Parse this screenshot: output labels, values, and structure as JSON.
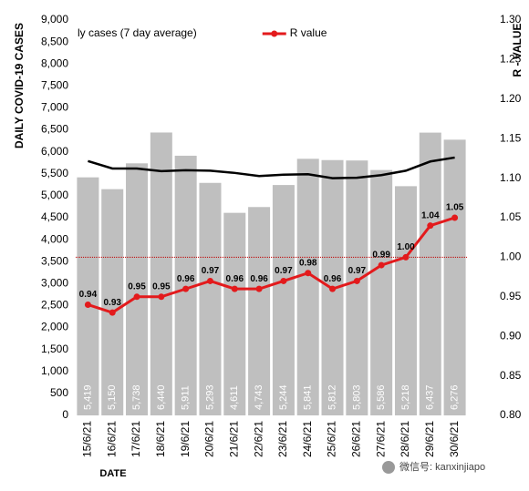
{
  "chart_data": {
    "type": "bar",
    "y_label": "DAILY COVID-19 CASES",
    "y2_label": "R - VALUE",
    "x_label": "DATE",
    "watermark": "微信号: kanxinjiapo",
    "categories": [
      "15/6/21",
      "16/6/21",
      "17/6/21",
      "18/6/21",
      "19/6/21",
      "20/6/21",
      "21/6/21",
      "22/6/21",
      "23/6/21",
      "24/6/21",
      "25/6/21",
      "26/6/21",
      "27/6/21",
      "28/6/21",
      "29/6/21",
      "30/6/21"
    ],
    "series": [
      {
        "type": "bar",
        "color": "#bfbfbf",
        "values": [
          5419,
          5150,
          5738,
          6440,
          5911,
          5293,
          4611,
          4743,
          5244,
          5841,
          5812,
          5803,
          5586,
          5218,
          6437,
          6276
        ],
        "value_labels": [
          "5,419",
          "5,150",
          "5,738",
          "6,440",
          "5,911",
          "5,293",
          "4,611",
          "4,743",
          "5,244",
          "5,841",
          "5,812",
          "5,803",
          "5,586",
          "5,218",
          "6,437",
          "6,276"
        ]
      },
      {
        "type": "line",
        "name": "ly cases (7 day average)",
        "color": "#000000",
        "values": [
          5790,
          5620,
          5620,
          5560,
          5580,
          5570,
          5520,
          5450,
          5480,
          5490,
          5400,
          5410,
          5470,
          5570,
          5780,
          5870
        ]
      },
      {
        "type": "line",
        "name": "R value",
        "axis": "y2",
        "color": "#e31a1c",
        "markers": true,
        "values": [
          0.94,
          0.93,
          0.95,
          0.95,
          0.96,
          0.97,
          0.96,
          0.96,
          0.97,
          0.98,
          0.96,
          0.97,
          0.99,
          1.0,
          1.04,
          1.05
        ],
        "value_labels": [
          "0.94",
          "0.93",
          "0.95",
          "0.95",
          "0.96",
          "0.97",
          "0.96",
          "0.96",
          "0.97",
          "0.98",
          "0.96",
          "0.97",
          "0.99",
          "1.00",
          "1.04",
          "1.05"
        ]
      }
    ],
    "reference_line": {
      "axis": "y2",
      "value": 1.0,
      "color": "#c00000"
    },
    "ylim": [
      0,
      9000
    ],
    "yticks": [
      0,
      500,
      {
        "value": 1000,
        "label": "1,000"
      },
      {
        "value": 1500,
        "label": "1,500"
      },
      {
        "value": 2000,
        "label": "2,000"
      },
      {
        "value": 2500,
        "label": "2,500"
      },
      {
        "value": 3000,
        "label": "3,000"
      },
      {
        "value": 3500,
        "label": "3,500"
      },
      {
        "value": 4000,
        "label": "4,000"
      },
      {
        "value": 4500,
        "label": "4,500"
      },
      {
        "value": 5000,
        "label": "5,000"
      },
      {
        "value": 5500,
        "label": "5,500"
      },
      {
        "value": 6000,
        "label": "6,000"
      },
      {
        "value": 6500,
        "label": "6,500"
      },
      {
        "value": 7000,
        "label": "7,000"
      },
      {
        "value": 7500,
        "label": "7,500"
      },
      {
        "value": 8000,
        "label": "8,000"
      },
      {
        "value": 8500,
        "label": "8,500"
      },
      {
        "value": 9000,
        "label": "9,000"
      }
    ],
    "y2lim": [
      0.8,
      1.3
    ],
    "y2ticks": [
      {
        "value": 0.8,
        "label": "0.80"
      },
      0.85,
      {
        "value": 0.9,
        "label": "0.90"
      },
      0.95,
      {
        "value": 1.0,
        "label": "1.00"
      },
      1.05,
      {
        "value": 1.1,
        "label": "1.10"
      },
      1.15,
      {
        "value": 1.2,
        "label": "1.20"
      },
      1.25,
      {
        "value": 1.3,
        "label": "1.30"
      }
    ]
  }
}
